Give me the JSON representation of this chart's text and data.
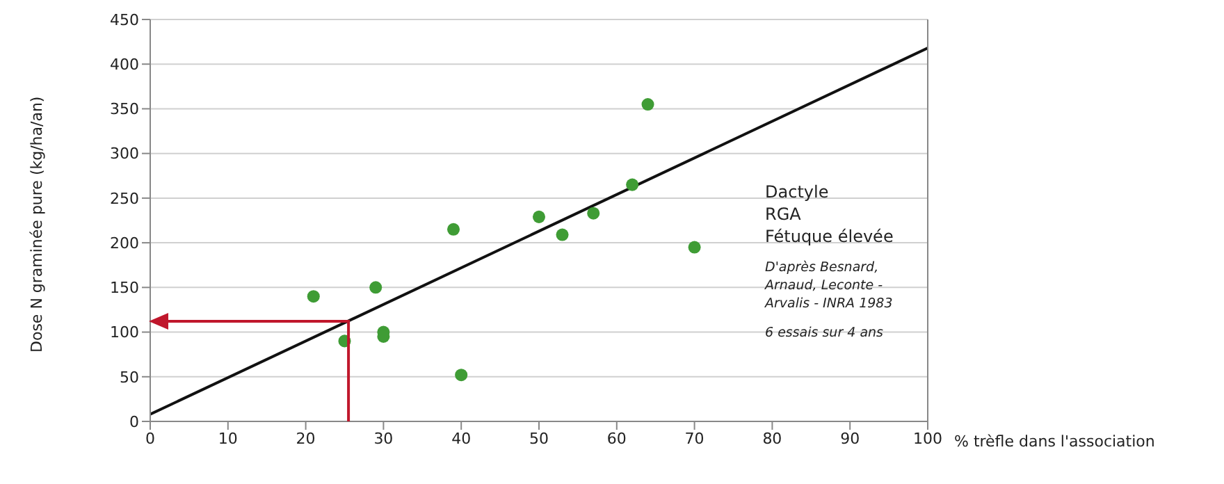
{
  "chart_data": {
    "type": "scatter",
    "xlabel": "% trèfle dans l'association",
    "ylabel": "Dose N graminée pure (kg/ha/an)",
    "xlim": [
      0,
      100
    ],
    "xticks": [
      0,
      10,
      20,
      30,
      40,
      50,
      60,
      70,
      80,
      90,
      100
    ],
    "ylim": [
      0,
      450
    ],
    "yticks": [
      0,
      50,
      100,
      150,
      200,
      250,
      300,
      350,
      400,
      450
    ],
    "grid": "y",
    "marker": "circle",
    "series": [
      {
        "color": "#3f9c35",
        "x": [
          21,
          29,
          25,
          30,
          30,
          39,
          40,
          50,
          53,
          57,
          62,
          64,
          70
        ],
        "values": [
          140,
          150,
          90,
          100,
          95,
          215,
          52,
          229,
          209,
          233,
          265,
          355,
          195
        ]
      },
      {
        "type": "line",
        "color": "#111111",
        "x": [
          0,
          100
        ],
        "values": [
          8,
          418
        ],
        "marker": "none"
      }
    ],
    "annotations": [
      "Dactyle",
      "RGA",
      "Fétuque élevée",
      "D'après Besnard, Arnaud, Leconte - Arvalis - INRA 1983",
      "6 essais sur 4 ans"
    ]
  }
}
